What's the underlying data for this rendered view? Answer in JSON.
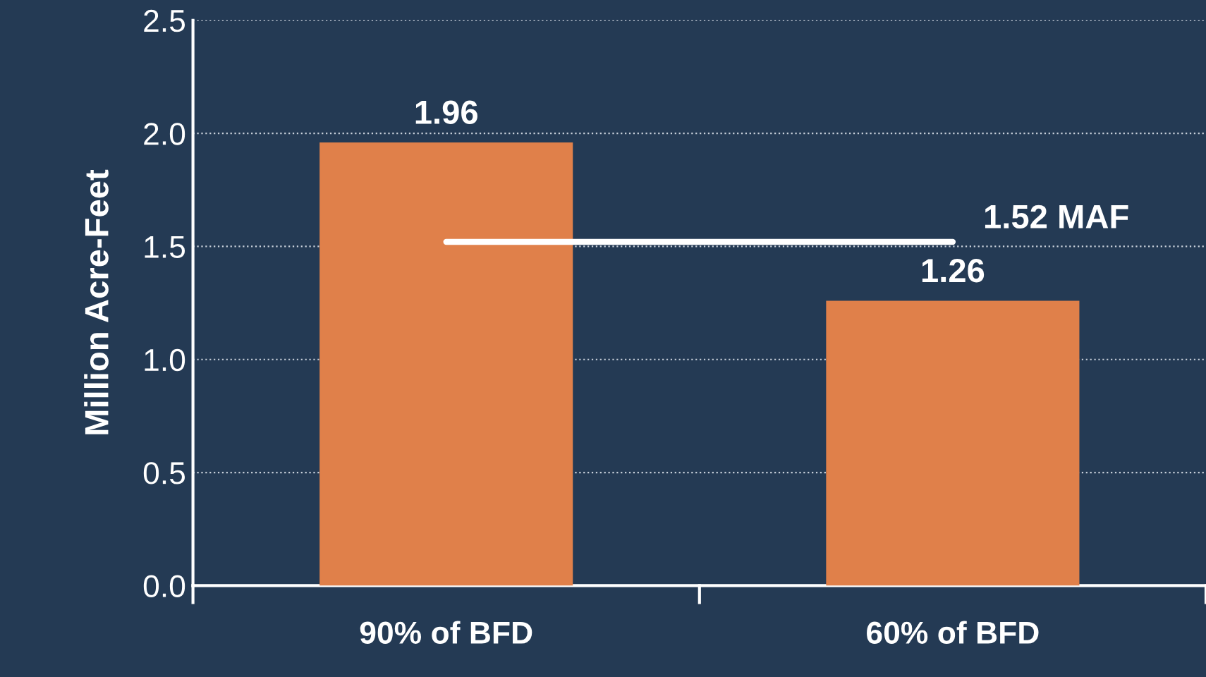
{
  "chart_data": {
    "type": "bar",
    "ylabel": "Million Acre-Feet",
    "categories": [
      "90% of BFD",
      "60% of BFD"
    ],
    "values": [
      1.96,
      1.26
    ],
    "color": "#e0804a",
    "data_labels": true,
    "ylim": [
      0,
      2.5
    ],
    "yticks": [
      {
        "value": 0,
        "label": "0.0"
      },
      0.5,
      {
        "value": 1,
        "label": "1.0"
      },
      1.5,
      {
        "value": 2,
        "label": "2.0"
      },
      2.5
    ],
    "grid": "y",
    "ref_lines": [
      {
        "axis": "y",
        "value": 1.52,
        "label": "1.52 MAF",
        "color": "#ffffff",
        "line_style": "solid"
      }
    ]
  }
}
